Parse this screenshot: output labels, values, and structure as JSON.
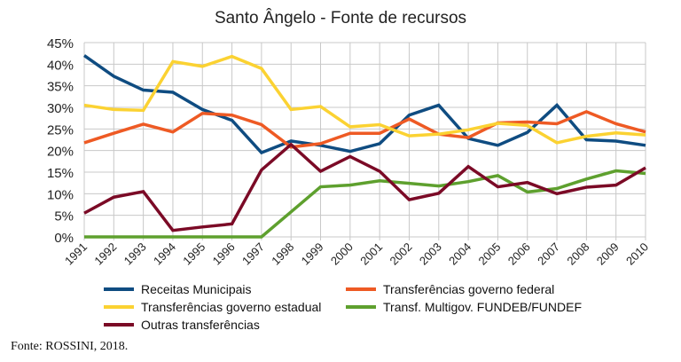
{
  "chart_data": {
    "type": "line",
    "title": "Santo Ângelo - Fonte de recursos",
    "xlabel": "",
    "ylabel": "",
    "ylim": [
      0,
      45
    ],
    "y_ticks": [
      "0%",
      "5%",
      "10%",
      "15%",
      "20%",
      "25%",
      "30%",
      "35%",
      "40%",
      "45%"
    ],
    "grid": true,
    "legend_position": "bottom",
    "x": [
      "1991",
      "1992",
      "1993",
      "1994",
      "1995",
      "1996",
      "1997",
      "1998",
      "1999",
      "2000",
      "2001",
      "2002",
      "2003",
      "2004",
      "2005",
      "2006",
      "2007",
      "2008",
      "2009",
      "2010"
    ],
    "series": [
      {
        "name": "Receitas Municipais",
        "color": "#0f4c81",
        "values": [
          42,
          37.2,
          34,
          33.5,
          29.5,
          27,
          19.5,
          22.2,
          21.2,
          19.8,
          21.6,
          28.2,
          30.5,
          22.8,
          21.2,
          24.2,
          30.5,
          22.5,
          22.2,
          21.2
        ]
      },
      {
        "name": "Transferências governo federal",
        "color": "#ee5a24",
        "values": [
          21.8,
          24,
          26.1,
          24.3,
          28.6,
          28.2,
          26,
          20.8,
          21.6,
          24,
          24,
          27.3,
          23.8,
          23,
          26.4,
          26.6,
          26.2,
          29,
          26.2,
          24.3
        ]
      },
      {
        "name": "Transferências governo estadual",
        "color": "#fbd232",
        "values": [
          30.5,
          29.5,
          29.3,
          40.6,
          39.5,
          41.8,
          39,
          29.5,
          30.2,
          25.5,
          26,
          23.4,
          23.8,
          24.8,
          26.3,
          25.8,
          21.8,
          23.3,
          24.1,
          23.6
        ]
      },
      {
        "name": "Transf. Multigov. FUNDEB/FUNDEF",
        "color": "#5ea02e",
        "values": [
          0,
          0,
          0,
          0,
          0,
          0,
          0,
          5.8,
          11.6,
          12,
          13,
          12.4,
          11.8,
          12.8,
          14.2,
          10.4,
          11.2,
          13.4,
          15.3,
          14.7
        ]
      },
      {
        "name": "Outras transferências",
        "color": "#7b0a26",
        "values": [
          5.5,
          9.2,
          10.5,
          1.5,
          2.3,
          3,
          15.5,
          21.4,
          15.2,
          18.6,
          15.2,
          8.6,
          10.1,
          16.3,
          11.6,
          12.6,
          10,
          11.5,
          12,
          16
        ]
      }
    ]
  },
  "footer": "Fonte: ROSSINI, 2018."
}
